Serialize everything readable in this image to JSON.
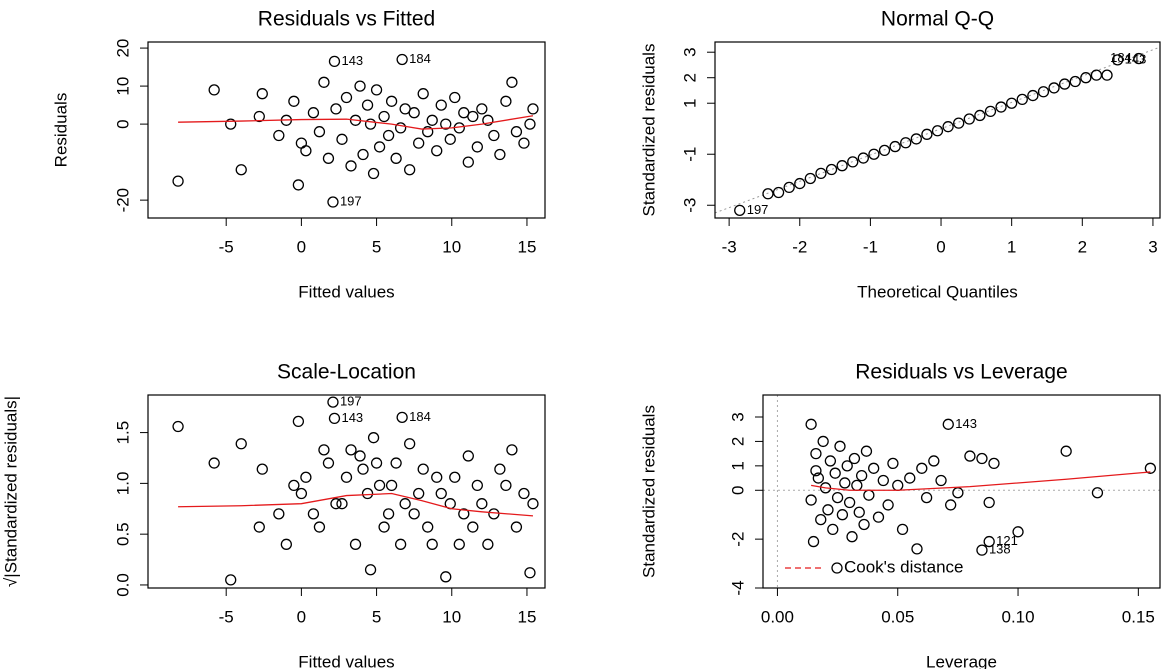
{
  "chart_data": [
    {
      "type": "scatter",
      "title": "Residuals vs Fitted",
      "x_label": "Fitted values",
      "y_label": "Residuals",
      "xlim": [
        -10.2,
        16.2
      ],
      "ylim": [
        -24.7,
        21.6
      ],
      "xticks": [
        -5,
        0,
        5,
        10,
        15
      ],
      "yticks": [
        -20,
        0,
        10,
        20
      ],
      "points": {
        "color": "#000000",
        "x": [
          -8.2,
          -5.8,
          -4.7,
          -4,
          -2.8,
          -2.6,
          -1.5,
          -1,
          -0.5,
          -0.2,
          0,
          0.3,
          0.8,
          1.2,
          1.5,
          1.8,
          2.3,
          2.7,
          3,
          3.3,
          3.6,
          3.9,
          4.1,
          4.4,
          4.6,
          4.8,
          5,
          5.2,
          5.5,
          5.8,
          6,
          6.3,
          6.6,
          6.9,
          7.2,
          7.5,
          7.8,
          8.1,
          8.4,
          8.7,
          9,
          9.3,
          9.6,
          9.9,
          10.2,
          10.5,
          10.8,
          11.1,
          11.4,
          11.7,
          12,
          12.4,
          12.8,
          13.2,
          13.6,
          14,
          14.3,
          14.8,
          15.2,
          15.4
        ],
        "y": [
          -15,
          9,
          0,
          -12,
          2,
          8,
          -3,
          1,
          6,
          -16,
          -5,
          -7,
          3,
          -2,
          11,
          -9,
          4,
          -4,
          7,
          -11,
          1,
          10,
          -8,
          5,
          0,
          -13,
          9,
          -6,
          2,
          -3,
          6,
          -9,
          -1,
          4,
          -12,
          3,
          -5,
          8,
          -2,
          1,
          -7,
          5,
          0,
          -4,
          7,
          -1,
          3,
          -10,
          2,
          -6,
          4,
          1,
          -3,
          -8,
          6,
          11,
          -2,
          -5,
          0,
          4
        ]
      },
      "labeled_points": {
        "x": [
          2.2,
          6.7,
          2.1
        ],
        "y": [
          16.5,
          17,
          -20.5
        ],
        "labels": [
          "143",
          "184",
          "197"
        ]
      },
      "smooth": {
        "color": "#e41a1c",
        "x": [
          -8.2,
          -4,
          0,
          3,
          6,
          8,
          10,
          12,
          15.4
        ],
        "y": [
          0.5,
          0.8,
          1.2,
          1.3,
          0,
          -1.3,
          -1,
          0,
          2.2
        ]
      }
    },
    {
      "type": "scatter",
      "title": "Normal Q-Q",
      "x_label": "Theoretical Quantiles",
      "y_label": "Standardized residuals",
      "xlim": [
        -3.2,
        3.1
      ],
      "ylim": [
        -3.5,
        3.4
      ],
      "xticks": [
        -3,
        -2,
        -1,
        0,
        1,
        2,
        3
      ],
      "yticks": [
        -3,
        -1,
        1,
        2,
        3
      ],
      "points": {
        "color": "#000000",
        "x": [
          -2.45,
          -2.3,
          -2.15,
          -2.0,
          -1.85,
          -1.7,
          -1.55,
          -1.4,
          -1.25,
          -1.1,
          -0.95,
          -0.8,
          -0.65,
          -0.5,
          -0.35,
          -0.2,
          -0.05,
          0.1,
          0.25,
          0.4,
          0.55,
          0.7,
          0.85,
          1.0,
          1.15,
          1.3,
          1.45,
          1.6,
          1.75,
          1.9,
          2.05,
          2.2,
          2.35
        ],
        "y": [
          -2.55,
          -2.5,
          -2.3,
          -2.15,
          -1.95,
          -1.75,
          -1.6,
          -1.45,
          -1.3,
          -1.15,
          -1.0,
          -0.85,
          -0.7,
          -0.55,
          -0.4,
          -0.22,
          -0.08,
          0.08,
          0.22,
          0.38,
          0.52,
          0.68,
          0.85,
          1.0,
          1.15,
          1.3,
          1.45,
          1.6,
          1.75,
          1.85,
          2.0,
          2.1,
          2.1
        ]
      },
      "labeled_points": {
        "x": [
          -2.85,
          2.5,
          2.8
        ],
        "y": [
          -3.2,
          2.7,
          2.75
        ],
        "labels": [
          "197",
          "143",
          "184"
        ]
      },
      "ref_line": {
        "color": "#999999",
        "x": [
          -3.2,
          3.1
        ],
        "y": [
          -3.3,
          3.2
        ]
      }
    },
    {
      "type": "scatter",
      "title": "Scale-Location",
      "x_label": "Fitted values",
      "y_label": "√|Standardized residuals|",
      "xlim": [
        -10.2,
        16.2
      ],
      "ylim": [
        -0.03,
        1.87
      ],
      "xticks": [
        -5,
        0,
        5,
        10,
        15
      ],
      "yticks": [
        {
          "value": 0,
          "label": "0.0"
        },
        {
          "value": 0.5,
          "label": "0.5"
        },
        {
          "value": 1,
          "label": "1.0"
        },
        {
          "value": 1.5,
          "label": "1.5"
        }
      ],
      "points": {
        "color": "#000000",
        "x": [
          -8.2,
          -5.8,
          -4.7,
          -4,
          -2.8,
          -2.6,
          -1.5,
          -1,
          -0.5,
          -0.2,
          0,
          0.3,
          0.8,
          1.2,
          1.5,
          1.8,
          2.3,
          2.7,
          3,
          3.3,
          3.6,
          3.9,
          4.1,
          4.4,
          4.6,
          4.8,
          5,
          5.2,
          5.5,
          5.8,
          6,
          6.3,
          6.6,
          6.9,
          7.2,
          7.5,
          7.8,
          8.1,
          8.4,
          8.7,
          9,
          9.3,
          9.6,
          9.9,
          10.2,
          10.5,
          10.8,
          11.1,
          11.4,
          11.7,
          12,
          12.4,
          12.8,
          13.2,
          13.6,
          14,
          14.3,
          14.8,
          15.2,
          15.4
        ],
        "y": [
          1.56,
          1.2,
          0.05,
          1.39,
          0.57,
          1.14,
          0.7,
          0.4,
          0.98,
          1.61,
          0.9,
          1.06,
          0.7,
          0.57,
          1.33,
          1.2,
          0.8,
          0.8,
          1.06,
          1.33,
          0.4,
          1.27,
          1.14,
          0.9,
          0.15,
          1.45,
          1.2,
          0.98,
          0.57,
          0.7,
          0.98,
          1.2,
          0.4,
          0.8,
          1.39,
          0.7,
          0.9,
          1.14,
          0.57,
          0.4,
          1.06,
          0.9,
          0.08,
          0.8,
          1.06,
          0.4,
          0.7,
          1.27,
          0.57,
          0.98,
          0.8,
          0.4,
          0.7,
          1.14,
          0.98,
          1.33,
          0.57,
          0.9,
          0.12,
          0.8
        ]
      },
      "labeled_points": {
        "x": [
          2.1,
          2.2,
          6.7
        ],
        "y": [
          1.8,
          1.64,
          1.65
        ],
        "labels": [
          "197",
          "143",
          "184"
        ]
      },
      "smooth": {
        "color": "#e41a1c",
        "x": [
          -8.2,
          -4,
          0,
          3,
          6,
          8,
          10,
          12,
          15.4
        ],
        "y": [
          0.77,
          0.78,
          0.8,
          0.88,
          0.9,
          0.83,
          0.75,
          0.72,
          0.68
        ]
      }
    },
    {
      "type": "scatter",
      "title": "Residuals vs Leverage",
      "x_label": "Leverage",
      "y_label": "Standardized residuals",
      "xlim": [
        -0.006,
        0.159
      ],
      "ylim": [
        -4,
        3.9
      ],
      "xticks": [
        {
          "value": 0,
          "label": "0.00"
        },
        {
          "value": 0.05,
          "label": "0.05"
        },
        {
          "value": 0.1,
          "label": "0.10"
        },
        {
          "value": 0.15,
          "label": "0.15"
        }
      ],
      "yticks": [
        -4,
        -2,
        0,
        1,
        2,
        3
      ],
      "points": {
        "color": "#000000",
        "x": [
          0.014,
          0.015,
          0.016,
          0.017,
          0.018,
          0.019,
          0.02,
          0.021,
          0.022,
          0.023,
          0.024,
          0.025,
          0.026,
          0.027,
          0.028,
          0.029,
          0.03,
          0.031,
          0.032,
          0.033,
          0.034,
          0.035,
          0.036,
          0.037,
          0.038,
          0.04,
          0.042,
          0.044,
          0.046,
          0.048,
          0.05,
          0.052,
          0.055,
          0.058,
          0.06,
          0.062,
          0.065,
          0.068,
          0.072,
          0.075,
          0.08,
          0.085,
          0.088,
          0.09,
          0.1,
          0.12,
          0.133,
          0.155,
          0.014,
          0.016
        ],
        "y": [
          2.7,
          -2.1,
          1.5,
          0.5,
          -1.2,
          2,
          0.1,
          -0.8,
          1.2,
          -1.6,
          0.7,
          -0.3,
          1.8,
          -1,
          0.3,
          1,
          -0.5,
          -1.9,
          1.3,
          0.2,
          -0.9,
          0.6,
          -1.4,
          1.6,
          -0.2,
          0.9,
          -1.1,
          0.4,
          -0.6,
          1.1,
          0.2,
          -1.6,
          0.5,
          -2.4,
          0.9,
          -0.3,
          1.2,
          0.4,
          -0.6,
          -0.1,
          1.4,
          1.3,
          -0.5,
          1.1,
          -1.7,
          1.6,
          -0.1,
          0.9,
          -0.4,
          0.8
        ]
      },
      "labeled_points": {
        "x": [
          0.071,
          0.088,
          0.085
        ],
        "y": [
          2.7,
          -2.1,
          -2.45
        ],
        "labels": [
          "143",
          "121",
          "138"
        ]
      },
      "smooth": {
        "color": "#e41a1c",
        "x": [
          0.014,
          0.02,
          0.03,
          0.05,
          0.08,
          0.12,
          0.155
        ],
        "y": [
          0.2,
          0.1,
          0,
          0,
          0.15,
          0.45,
          0.75
        ]
      },
      "legend": {
        "label": "Cook's distance",
        "color": "#e41a1c"
      }
    }
  ]
}
